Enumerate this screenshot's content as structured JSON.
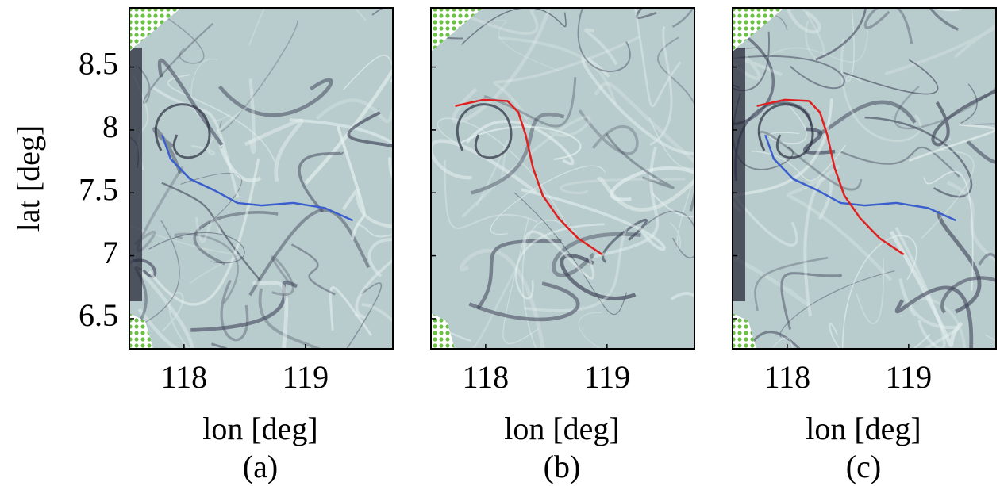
{
  "chart_data": [
    {
      "type": "line",
      "caption": "(a)",
      "xlabel": "lon [deg]",
      "ylabel": "lat [deg]",
      "xlim": [
        117.55,
        119.72
      ],
      "ylim": [
        6.26,
        8.97
      ],
      "xticks": [
        118,
        119
      ],
      "yticks": [
        6.5,
        7,
        7.5,
        8,
        8.5
      ],
      "series": [
        {
          "color": "#3a5fcd",
          "x": [
            117.82,
            117.89,
            118.05,
            118.25,
            118.44,
            118.64,
            118.9,
            119.16,
            119.39
          ],
          "values": [
            7.96,
            7.77,
            7.61,
            7.52,
            7.42,
            7.4,
            7.42,
            7.38,
            7.28
          ]
        }
      ]
    },
    {
      "type": "line",
      "caption": "(b)",
      "xlabel": "lon [deg]",
      "xlim": [
        117.55,
        119.72
      ],
      "ylim": [
        6.26,
        8.97
      ],
      "xticks": [
        118,
        119
      ],
      "series": [
        {
          "color": "#e02020",
          "x": [
            117.75,
            117.98,
            118.18,
            118.27,
            118.33,
            118.39,
            118.47,
            118.6,
            118.76,
            118.96
          ],
          "values": [
            8.19,
            8.24,
            8.23,
            8.14,
            7.96,
            7.7,
            7.48,
            7.3,
            7.14,
            7.01
          ]
        }
      ]
    },
    {
      "type": "line",
      "caption": "(c)",
      "xlabel": "lon [deg]",
      "xlim": [
        117.55,
        119.72
      ],
      "ylim": [
        6.26,
        8.97
      ],
      "xticks": [
        118,
        119
      ],
      "series": [
        {
          "color": "#3a5fcd",
          "x": [
            117.82,
            117.89,
            118.05,
            118.25,
            118.44,
            118.64,
            118.9,
            119.16,
            119.39
          ],
          "values": [
            7.96,
            7.77,
            7.61,
            7.52,
            7.42,
            7.4,
            7.42,
            7.38,
            7.28
          ]
        },
        {
          "color": "#e02020",
          "x": [
            117.75,
            117.98,
            118.18,
            118.27,
            118.33,
            118.39,
            118.47,
            118.6,
            118.76,
            118.96
          ],
          "values": [
            8.19,
            8.24,
            8.23,
            8.14,
            7.96,
            7.7,
            7.48,
            7.3,
            7.14,
            7.01
          ]
        }
      ]
    }
  ]
}
